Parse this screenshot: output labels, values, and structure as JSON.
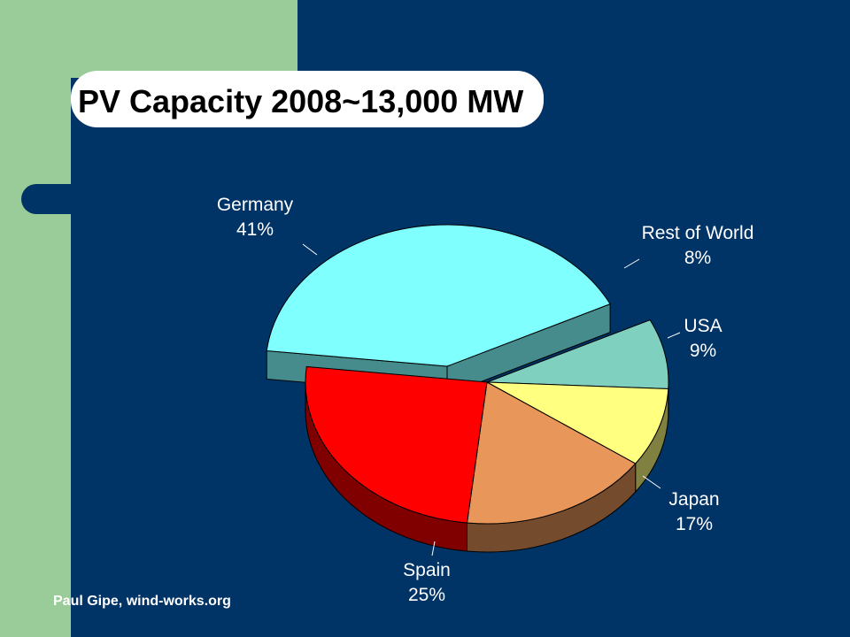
{
  "title": "PV Capacity 2008~13,000 MW",
  "credit": "Paul Gipe, wind-works.org",
  "colors": {
    "background": "#003366",
    "sidebar": "#99cc99",
    "germany": "#80ffff",
    "spain": "#ff0000",
    "japan": "#e8965a",
    "usa": "#ffff80",
    "rest_of_world": "#80d0c0"
  },
  "chart_data": {
    "type": "pie",
    "title": "PV Capacity 2008~13,000 MW",
    "slices": [
      {
        "label": "Germany",
        "value": 41,
        "value_label": "41%",
        "color": "#80ffff",
        "exploded": true
      },
      {
        "label": "Rest of World",
        "value": 8,
        "value_label": "8%",
        "color": "#80d0c0",
        "exploded": true
      },
      {
        "label": "USA",
        "value": 9,
        "value_label": "9%",
        "color": "#ffff80",
        "exploded": false
      },
      {
        "label": "Japan",
        "value": 17,
        "value_label": "17%",
        "color": "#e8965a",
        "exploded": false
      },
      {
        "label": "Spain",
        "value": 25,
        "value_label": "25%",
        "color": "#ff0000",
        "exploded": false
      }
    ],
    "style": "3d"
  }
}
